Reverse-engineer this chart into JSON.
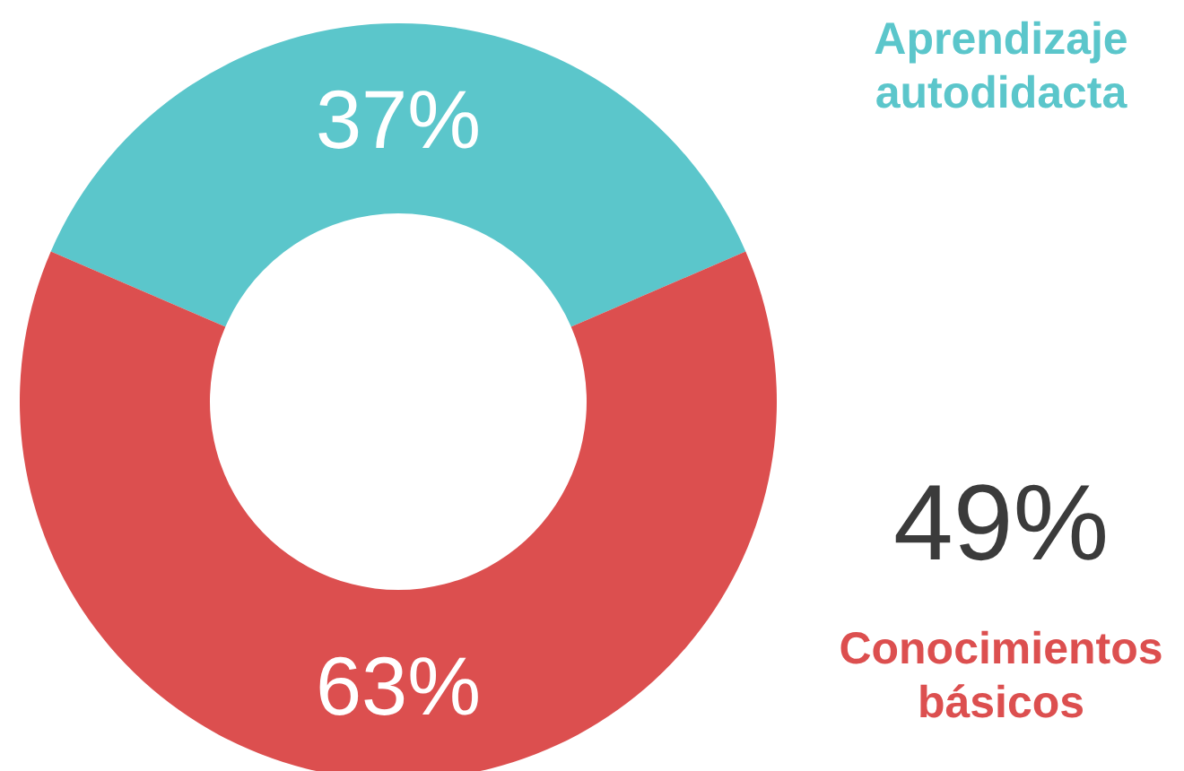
{
  "chart_data": {
    "type": "donut",
    "categories": [
      "Aprendizaje autodidacta",
      "Conocimientos básicos"
    ],
    "values": [
      37,
      63
    ],
    "value_labels": [
      "37%",
      "63%"
    ],
    "colors": [
      "#5bc6cb",
      "#dc4f4f"
    ],
    "annotations": [
      "49%"
    ]
  }
}
